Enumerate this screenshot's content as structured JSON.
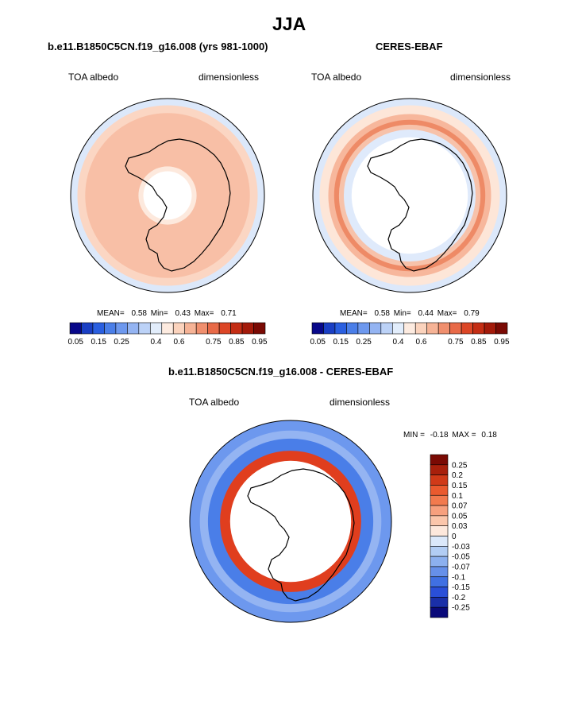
{
  "page_title": "JJA",
  "chart_data": [
    {
      "type": "heatmap",
      "projection": "south-polar-stereographic",
      "title": "b.e11.B1850C5CN.f19_g16.008 (yrs 981-1000)",
      "left_label": "TOA albedo",
      "right_label": "dimensionless",
      "stats": {
        "mean_label": "MEAN=",
        "mean": "0.58",
        "min_label": "Min=",
        "min": "0.43",
        "max_label": "Max=",
        "max": "0.71"
      },
      "colorbar": {
        "levels": [
          0.05,
          0.1,
          0.15,
          0.2,
          0.25,
          0.3,
          0.35,
          0.4,
          0.5,
          0.6,
          0.65,
          0.7,
          0.75,
          0.8,
          0.85,
          0.9,
          0.95
        ],
        "tick_labels": [
          "0.05",
          "0.15",
          "0.25",
          "0.4",
          "0.6",
          "0.75",
          "0.85",
          "0.95"
        ],
        "colors": [
          "#08088a",
          "#1a3fc4",
          "#2a5fe0",
          "#4a7ee8",
          "#6d98ee",
          "#94b4f2",
          "#bcd2f7",
          "#e2edfb",
          "#fdebe0",
          "#fbd3bd",
          "#f6b396",
          "#f08f6e",
          "#e86a48",
          "#dc4626",
          "#c42d14",
          "#a31a0a",
          "#7a0a04"
        ]
      },
      "field_bands": [
        {
          "radius_fraction": 1.0,
          "color": "#dce8fa"
        },
        {
          "radius_fraction": 0.93,
          "color": "#fbd6c3"
        },
        {
          "radius_fraction": 0.85,
          "color": "#f8bfa6"
        },
        {
          "radius_fraction": 0.3,
          "color": "#fde9dd"
        },
        {
          "radius_fraction": 0.25,
          "color": "#ffffff"
        }
      ]
    },
    {
      "type": "heatmap",
      "projection": "south-polar-stereographic",
      "title": "CERES-EBAF",
      "left_label": "TOA albedo",
      "right_label": "dimensionless",
      "stats": {
        "mean_label": "MEAN=",
        "mean": "0.58",
        "min_label": "Min=",
        "min": "0.44",
        "max_label": "Max=",
        "max": "0.79"
      },
      "colorbar": {
        "levels": [
          0.05,
          0.1,
          0.15,
          0.2,
          0.25,
          0.3,
          0.35,
          0.4,
          0.5,
          0.6,
          0.65,
          0.7,
          0.75,
          0.8,
          0.85,
          0.9,
          0.95
        ],
        "tick_labels": [
          "0.05",
          "0.15",
          "0.25",
          "0.4",
          "0.6",
          "0.75",
          "0.85",
          "0.95"
        ],
        "colors": [
          "#08088a",
          "#1a3fc4",
          "#2a5fe0",
          "#4a7ee8",
          "#6d98ee",
          "#94b4f2",
          "#bcd2f7",
          "#e2edfb",
          "#fdebe0",
          "#fbd3bd",
          "#f6b396",
          "#f08f6e",
          "#e86a48",
          "#dc4626",
          "#c42d14",
          "#a31a0a",
          "#7a0a04"
        ]
      },
      "field_bands": [
        {
          "radius_fraction": 1.0,
          "color": "#dce8fa"
        },
        {
          "radius_fraction": 0.93,
          "color": "#fde6d8"
        },
        {
          "radius_fraction": 0.84,
          "color": "#f7b79c"
        },
        {
          "radius_fraction": 0.78,
          "color": "#ee8a66"
        },
        {
          "radius_fraction": 0.73,
          "color": "#f7c2aa"
        },
        {
          "radius_fraction": 0.68,
          "color": "#dfeafb"
        },
        {
          "radius_fraction": 0.6,
          "color": "#ffffff"
        }
      ]
    },
    {
      "type": "heatmap",
      "projection": "south-polar-stereographic",
      "title": "b.e11.B1850C5CN.f19_g16.008 - CERES-EBAF",
      "left_label": "TOA albedo",
      "right_label": "dimensionless",
      "stats": {
        "min_label": "MIN =",
        "min": "-0.18",
        "max_label": "MAX =",
        "max": "0.18"
      },
      "colorbar": {
        "levels": [
          0.25,
          0.2,
          0.15,
          0.1,
          0.07,
          0.05,
          0.03,
          0,
          -0.03,
          -0.05,
          -0.07,
          -0.1,
          -0.15,
          -0.2,
          -0.25
        ],
        "tick_labels": [
          "0.25",
          "0.2",
          "0.15",
          "0.1",
          "0.07",
          "0.05",
          "0.03",
          "0",
          "-0.03",
          "-0.05",
          "-0.07",
          "-0.1",
          "-0.15",
          "-0.2",
          "-0.25"
        ],
        "colors": [
          "#7a0a04",
          "#a8200c",
          "#d03a18",
          "#ea5a2e",
          "#f27a4e",
          "#f7a07e",
          "#fbc6ab",
          "#fde8dc",
          "#dbe8fa",
          "#b2cdf4",
          "#8cb0ef",
          "#6690e9",
          "#4070e2",
          "#2a4fd8",
          "#1a2fa8",
          "#0a0a7a"
        ]
      },
      "field_bands": [
        {
          "radius_fraction": 1.0,
          "color": "#6d98ee"
        },
        {
          "radius_fraction": 0.9,
          "color": "#94b4f2"
        },
        {
          "radius_fraction": 0.82,
          "color": "#4a7ee8"
        },
        {
          "radius_fraction": 0.7,
          "color": "#e03e1e"
        },
        {
          "radius_fraction": 0.6,
          "color": "#ffffff"
        }
      ]
    }
  ]
}
